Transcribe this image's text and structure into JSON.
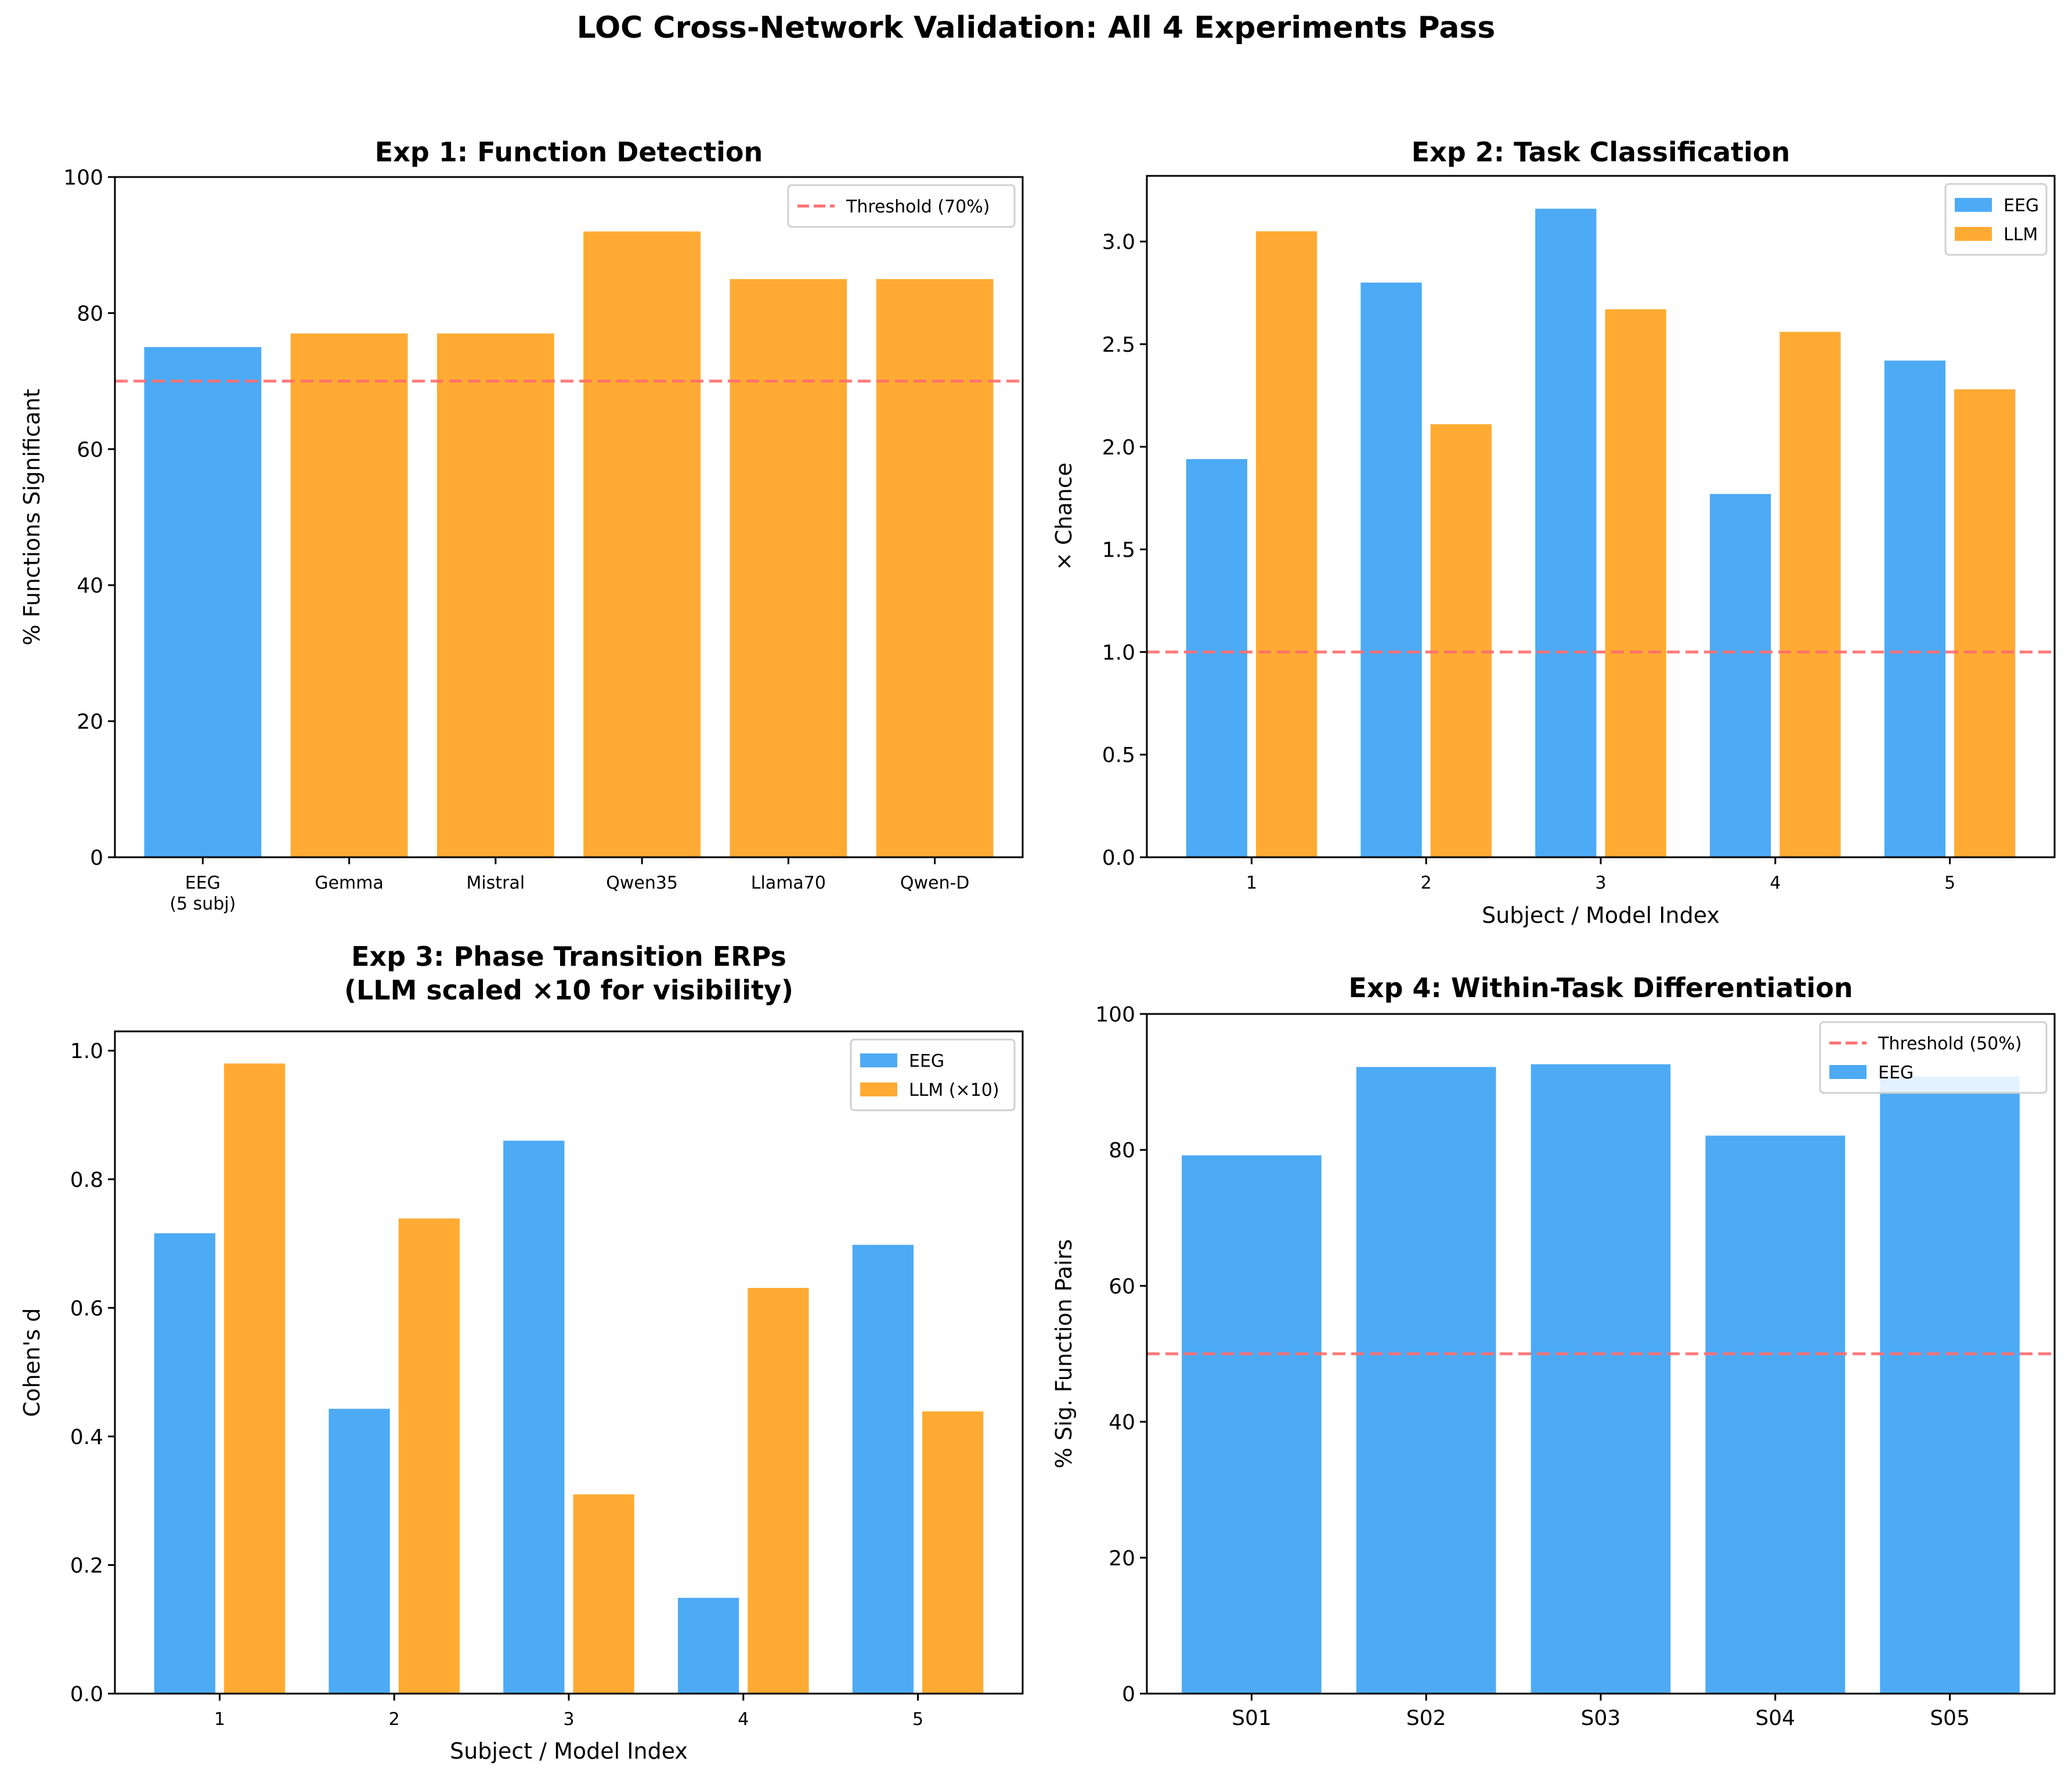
{
  "figure": {
    "suptitle": "LOC Cross-Network Validation: All 4 Experiments Pass"
  },
  "colors": {
    "eeg": "#4DAAF5",
    "llm": "#FFAB33",
    "threshold": "#FF6E6E"
  },
  "chart_data": [
    {
      "id": "exp1",
      "type": "bar",
      "title": "Exp 1: Function Detection",
      "title_lines": [
        "Exp 1: Function Detection"
      ],
      "xlabel": "",
      "ylabel": "% Functions Significant",
      "categories": [
        "EEG\n(5 subj)",
        "Gemma",
        "Mistral",
        "Qwen35",
        "Llama70",
        "Qwen-D"
      ],
      "category_lines": [
        [
          "EEG",
          "(5 subj)"
        ],
        [
          "Gemma"
        ],
        [
          "Mistral"
        ],
        [
          "Qwen35"
        ],
        [
          "Llama70"
        ],
        [
          "Qwen-D"
        ]
      ],
      "values": [
        75,
        77,
        77,
        92,
        85,
        85
      ],
      "bar_colors": [
        "eeg",
        "llm",
        "llm",
        "llm",
        "llm",
        "llm"
      ],
      "ylim": [
        0,
        100
      ],
      "yticks": [
        0,
        20,
        40,
        60,
        80,
        100
      ],
      "ytick_labels": [
        "0",
        "20",
        "40",
        "60",
        "80",
        "100"
      ],
      "threshold": {
        "value": 70,
        "label": "Threshold (70%)"
      },
      "legend": {
        "position": "top-right",
        "entries": [
          {
            "label": "Threshold (70%)",
            "kind": "line",
            "color": "threshold"
          }
        ]
      },
      "grid": false
    },
    {
      "id": "exp2",
      "type": "bar",
      "title": "Exp 2: Task Classification",
      "title_lines": [
        "Exp 2: Task Classification"
      ],
      "xlabel": "Subject / Model Index",
      "ylabel": "× Chance",
      "categories": [
        "1",
        "2",
        "3",
        "4",
        "5"
      ],
      "series": [
        {
          "name": "EEG",
          "color": "eeg",
          "values": [
            1.94,
            2.8,
            3.16,
            1.77,
            2.42
          ]
        },
        {
          "name": "LLM",
          "color": "llm",
          "values": [
            3.05,
            2.11,
            2.67,
            2.56,
            2.28
          ]
        }
      ],
      "ylim": [
        0,
        3.32
      ],
      "yticks": [
        0,
        0.5,
        1.0,
        1.5,
        2.0,
        2.5,
        3.0
      ],
      "ytick_labels": [
        "0.0",
        "0.5",
        "1.0",
        "1.5",
        "2.0",
        "2.5",
        "3.0"
      ],
      "threshold": {
        "value": 1.0,
        "label": ""
      },
      "legend": {
        "position": "top-right",
        "entries": [
          {
            "label": "EEG",
            "kind": "patch",
            "color": "eeg"
          },
          {
            "label": "LLM",
            "kind": "patch",
            "color": "llm"
          }
        ]
      },
      "grid": false
    },
    {
      "id": "exp3",
      "type": "bar",
      "title": "Exp 3: Phase Transition ERPs\n(LLM scaled ×10 for visibility)",
      "title_lines": [
        "Exp 3: Phase Transition ERPs",
        "(LLM scaled ×10 for visibility)"
      ],
      "xlabel": "Subject / Model Index",
      "ylabel": "Cohen's d",
      "categories": [
        "1",
        "2",
        "3",
        "4",
        "5"
      ],
      "series": [
        {
          "name": "EEG",
          "color": "eeg",
          "values": [
            0.716,
            0.443,
            0.86,
            0.149,
            0.698
          ]
        },
        {
          "name": "LLM (×10)",
          "color": "llm",
          "values": [
            0.98,
            0.739,
            0.31,
            0.631,
            0.439
          ]
        }
      ],
      "ylim": [
        0,
        1.03
      ],
      "yticks": [
        0,
        0.2,
        0.4,
        0.6,
        0.8,
        1.0
      ],
      "ytick_labels": [
        "0.0",
        "0.2",
        "0.4",
        "0.6",
        "0.8",
        "1.0"
      ],
      "threshold": null,
      "legend": {
        "position": "top-right",
        "entries": [
          {
            "label": "EEG",
            "kind": "patch",
            "color": "eeg"
          },
          {
            "label": "LLM (×10)",
            "kind": "patch",
            "color": "llm"
          }
        ]
      },
      "grid": false
    },
    {
      "id": "exp4",
      "type": "bar",
      "title": "Exp 4: Within-Task Differentiation",
      "title_lines": [
        "Exp 4: Within-Task Differentiation"
      ],
      "xlabel": "",
      "ylabel": "% Sig. Function Pairs",
      "categories": [
        "S01",
        "S02",
        "S03",
        "S04",
        "S05"
      ],
      "category_lines": [
        [
          "S01"
        ],
        [
          "S02"
        ],
        [
          "S03"
        ],
        [
          "S04"
        ],
        [
          "S05"
        ]
      ],
      "values": [
        79.2,
        92.2,
        92.6,
        82.1,
        90.8
      ],
      "bar_colors": [
        "eeg",
        "eeg",
        "eeg",
        "eeg",
        "eeg"
      ],
      "ylim": [
        0,
        100
      ],
      "yticks": [
        0,
        20,
        40,
        60,
        80,
        100
      ],
      "ytick_labels": [
        "0",
        "20",
        "40",
        "60",
        "80",
        "100"
      ],
      "threshold": {
        "value": 50,
        "label": "Threshold (50%)"
      },
      "legend": {
        "position": "top-right",
        "entries": [
          {
            "label": "Threshold (50%)",
            "kind": "line",
            "color": "threshold"
          },
          {
            "label": "EEG",
            "kind": "patch",
            "color": "eeg"
          }
        ]
      },
      "grid": false
    }
  ]
}
